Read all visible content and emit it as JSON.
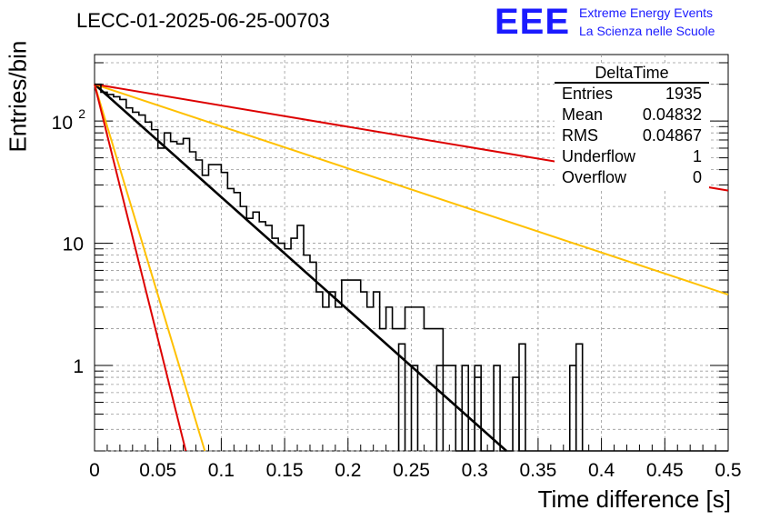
{
  "header": {
    "run_id": "LECC-01-2025-06-25-00703",
    "logo": "EEE",
    "logo_line1": "Extreme Energy Events",
    "logo_line2": "La Scienza nelle Scuole"
  },
  "stats_box": {
    "title": "DeltaTime",
    "rows": [
      {
        "label": "Entries",
        "value": "1935"
      },
      {
        "label": "Mean",
        "value": "0.04832"
      },
      {
        "label": "RMS",
        "value": "0.04867"
      },
      {
        "label": "Underflow",
        "value": "1"
      },
      {
        "label": "Overflow",
        "value": "0"
      }
    ]
  },
  "chart_data": {
    "type": "line",
    "xlabel": "Time difference [s]",
    "ylabel": "Entries/bin",
    "xlim": [
      0,
      0.5
    ],
    "ylim": [
      0.2,
      350
    ],
    "y_scale": "log",
    "grid": true,
    "x_tick_labels": [
      "0",
      "0.05",
      "0.1",
      "0.15",
      "0.2",
      "0.25",
      "0.3",
      "0.35",
      "0.4",
      "0.45",
      "0.5"
    ],
    "y_tick_labels": [
      "1",
      "10",
      "10^2"
    ],
    "histogram": {
      "bin_width": 0.005,
      "counts": [
        200,
        172,
        165,
        158,
        150,
        128,
        118,
        112,
        98,
        85,
        60,
        80,
        68,
        65,
        72,
        56,
        48,
        36,
        44,
        44,
        38,
        28,
        26,
        20,
        16,
        18,
        15,
        14,
        11,
        10,
        9,
        11,
        14,
        8,
        7,
        4,
        3,
        4,
        3,
        5,
        5,
        5,
        4,
        3,
        4,
        2,
        3,
        2,
        2,
        3,
        3,
        3,
        2,
        2,
        2,
        1,
        1,
        0,
        0,
        0,
        0.8,
        0,
        0,
        1,
        0,
        0,
        0.8,
        0,
        0,
        0,
        0,
        0,
        0,
        0,
        0,
        0,
        0,
        0,
        0,
        0,
        0,
        0,
        0,
        0,
        0,
        0,
        0,
        0,
        0,
        0,
        0,
        0,
        0,
        0,
        0,
        0,
        0,
        0,
        0,
        0
      ],
      "extra_bins": [
        {
          "x0": 0.24,
          "x1": 0.245,
          "y": 1.5
        },
        {
          "x0": 0.25,
          "x1": 0.255,
          "y": 1.0
        },
        {
          "x0": 0.27,
          "x1": 0.275,
          "y": 1.0
        },
        {
          "x0": 0.29,
          "x1": 0.295,
          "y": 1.0
        },
        {
          "x0": 0.3,
          "x1": 0.305,
          "y": 1.0
        },
        {
          "x0": 0.335,
          "x1": 0.34,
          "y": 1.5
        },
        {
          "x0": 0.375,
          "x1": 0.38,
          "y": 1.0
        },
        {
          "x0": 0.38,
          "x1": 0.385,
          "y": 1.5
        }
      ]
    },
    "series": [
      {
        "color": "#000000",
        "points": [
          [
            0,
            200
          ],
          [
            0.325,
            0.2
          ]
        ]
      },
      {
        "color": "#ffc000",
        "points": [
          [
            0,
            200
          ],
          [
            0.5,
            3.8
          ]
        ]
      },
      {
        "color": "#dd0000",
        "points": [
          [
            0,
            200
          ],
          [
            0.5,
            27
          ]
        ]
      },
      {
        "color": "#ffc000",
        "points": [
          [
            0,
            200
          ],
          [
            0.087,
            0.2
          ]
        ]
      },
      {
        "color": "#dd0000",
        "points": [
          [
            0,
            200
          ],
          [
            0.072,
            0.2
          ]
        ]
      }
    ]
  }
}
